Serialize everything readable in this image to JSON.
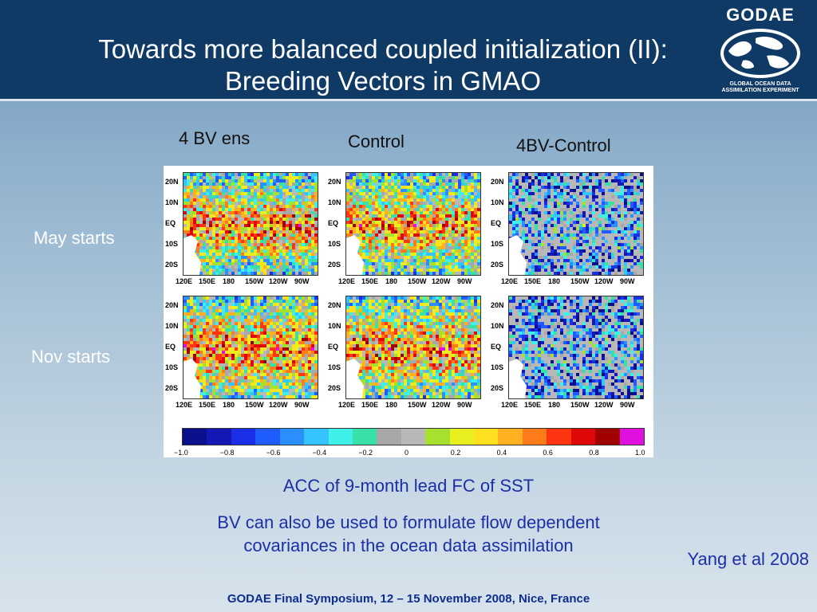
{
  "header": {
    "title_line1": "Towards more balanced coupled initialization (II):",
    "title_line2": "Breeding Vectors in GMAO",
    "logo_word": "GODAE",
    "logo_caption_line1": "GLOBAL OCEAN DATA",
    "logo_caption_line2": "ASSIMILATION EXPERIMENT",
    "logo_icon": "globe-icon"
  },
  "columns": [
    "4 BV ens",
    "Control",
    "4BV-Control"
  ],
  "rows": [
    "May starts",
    "Nov starts"
  ],
  "map_axes": {
    "lat_ticks": [
      "20N",
      "10N",
      "EQ",
      "10S",
      "20S"
    ],
    "lon_ticks": [
      "120E",
      "150E",
      "180",
      "150W",
      "120W",
      "90W"
    ]
  },
  "colorbar": {
    "ticks": [
      "−1.0",
      "−0.8",
      "−0.6",
      "−0.4",
      "−0.2",
      "0",
      "0.2",
      "0.4",
      "0.6",
      "0.8",
      "1.0"
    ],
    "colors": [
      "#0b0f8c",
      "#1418b4",
      "#1a2fe6",
      "#1f5cff",
      "#2b8fff",
      "#35c4ff",
      "#3ff0e8",
      "#39e0a8",
      "#a8a8a8",
      "#b8b8b8",
      "#a8e030",
      "#e8f020",
      "#ffe020",
      "#ffb020",
      "#ff7a18",
      "#ff3410",
      "#e00808",
      "#a00000",
      "#e010e0"
    ]
  },
  "captions": {
    "main": "ACC of 9-month lead FC of SST",
    "note_line1": "BV can also be used to formulate flow dependent",
    "note_line2": "covariances in the ocean data assimilation"
  },
  "credit": "Yang et al 2008",
  "footer": "GODAE Final Symposium, 12 – 15 November 2008, Nice, France"
}
